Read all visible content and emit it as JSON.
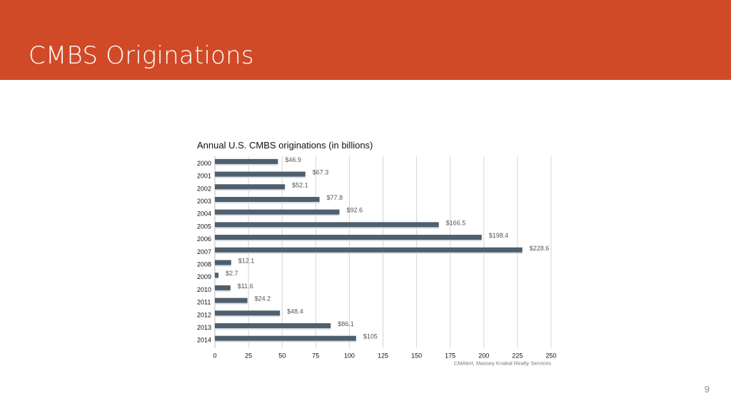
{
  "slide": {
    "title": "CMBS Originations",
    "page_number": "9",
    "header_color": "#d14a27"
  },
  "chart_data": {
    "type": "bar",
    "orientation": "horizontal",
    "title": "Annual U.S. CMBS originations (in billions)",
    "categories": [
      "2000",
      "2001",
      "2002",
      "2003",
      "2004",
      "2005",
      "2006",
      "2007",
      "2008",
      "2009",
      "2010",
      "2011",
      "2012",
      "2013",
      "2014"
    ],
    "values": [
      46.9,
      67.3,
      52.1,
      77.8,
      92.6,
      166.5,
      198.4,
      228.6,
      12.1,
      2.7,
      11.6,
      24.2,
      48.4,
      86.1,
      105
    ],
    "value_labels": [
      "$46.9",
      "$67.3",
      "$52.1",
      "$77.8",
      "$92.6",
      "$166.5",
      "$198.4",
      "$228.6",
      "$12.1",
      "$2.7",
      "$11.6",
      "$24.2",
      "$48.4",
      "$86.1",
      "$105"
    ],
    "x_ticks": [
      0,
      25,
      50,
      75,
      100,
      125,
      150,
      175,
      200,
      225,
      250
    ],
    "xlim": [
      0,
      250
    ],
    "grid": true,
    "bar_color": "#4f5f6e",
    "source": "CMAlert, Massey Knakal Realty Services"
  }
}
